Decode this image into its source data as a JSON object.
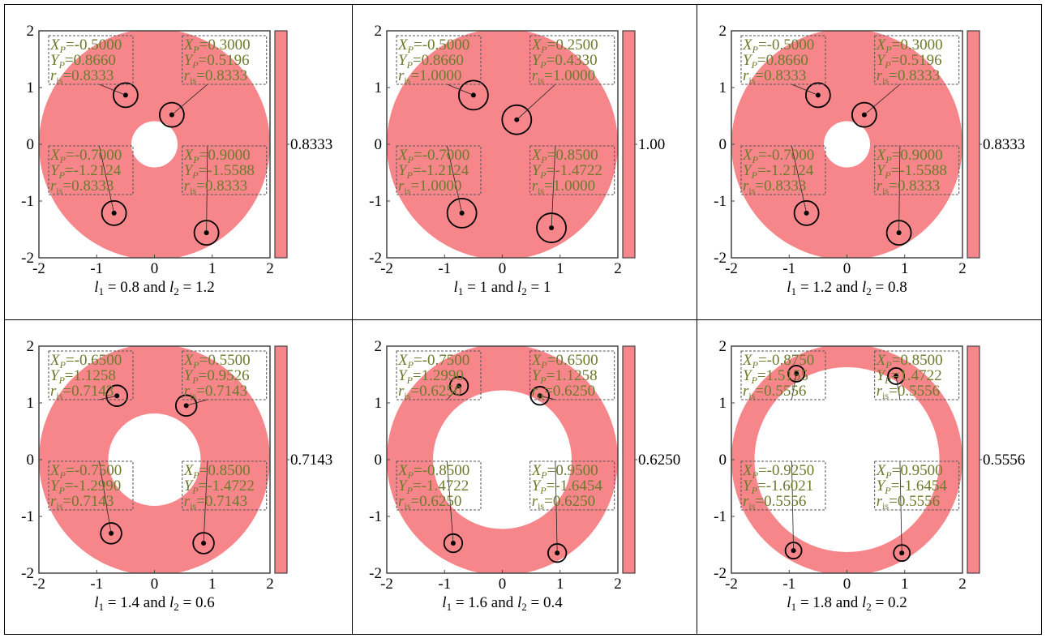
{
  "chart_data": [
    {
      "type": "scatter",
      "caption": {
        "l1": "0.8",
        "l2": "1.2"
      },
      "colorbar_label": "0.8333",
      "xlim": [
        -2,
        2
      ],
      "ylim": [
        -2,
        2
      ],
      "xticks": [
        "-2",
        "-1",
        "0",
        "1",
        "2"
      ],
      "yticks": [
        "-2",
        "-1",
        "0",
        "1",
        "2"
      ],
      "workspace": {
        "inner_radius": 0.4,
        "outer_radius": 2.0,
        "color": "#f6868a"
      },
      "points": [
        {
          "xp": "-0.5000",
          "yp": "0.8660",
          "ris": "0.8333",
          "x": -0.5,
          "y": 0.866
        },
        {
          "xp": "0.3000",
          "yp": "0.5196",
          "ris": "0.8333",
          "x": 0.3,
          "y": 0.5196
        },
        {
          "xp": "-0.7000",
          "yp": "-1.2124",
          "ris": "0.8333",
          "x": -0.7,
          "y": -1.2124
        },
        {
          "xp": "0.9000",
          "yp": "-1.5588",
          "ris": "0.8333",
          "x": 0.9,
          "y": -1.5588
        }
      ]
    },
    {
      "type": "scatter",
      "caption": {
        "l1": "1",
        "l2": "1"
      },
      "colorbar_label": "1.00",
      "xlim": [
        -2,
        2
      ],
      "ylim": [
        -2,
        2
      ],
      "xticks": [
        "-2",
        "-1",
        "0",
        "1",
        "2"
      ],
      "yticks": [
        "-2",
        "-1",
        "0",
        "1",
        "2"
      ],
      "workspace": {
        "inner_radius": 0.0,
        "outer_radius": 2.0,
        "color": "#f6868a"
      },
      "points": [
        {
          "xp": "-0.5000",
          "yp": "0.8660",
          "ris": "1.0000",
          "x": -0.5,
          "y": 0.866
        },
        {
          "xp": "0.2500",
          "yp": "0.4330",
          "ris": "1.0000",
          "x": 0.25,
          "y": 0.433
        },
        {
          "xp": "-0.7000",
          "yp": "-1.2124",
          "ris": "1.0000",
          "x": -0.7,
          "y": -1.2124
        },
        {
          "xp": "0.8500",
          "yp": "-1.4722",
          "ris": "1.0000",
          "x": 0.85,
          "y": -1.4722
        }
      ]
    },
    {
      "type": "scatter",
      "caption": {
        "l1": "1.2",
        "l2": "0.8"
      },
      "colorbar_label": "0.8333",
      "xlim": [
        -2,
        2
      ],
      "ylim": [
        -2,
        2
      ],
      "xticks": [
        "-2",
        "-1",
        "0",
        "1",
        "2"
      ],
      "yticks": [
        "-2",
        "-1",
        "0",
        "1",
        "2"
      ],
      "workspace": {
        "inner_radius": 0.4,
        "outer_radius": 2.0,
        "color": "#f6868a"
      },
      "points": [
        {
          "xp": "-0.5000",
          "yp": "0.8660",
          "ris": "0.8333",
          "x": -0.5,
          "y": 0.866
        },
        {
          "xp": "0.3000",
          "yp": "0.5196",
          "ris": "0.8333",
          "x": 0.3,
          "y": 0.5196
        },
        {
          "xp": "-0.7000",
          "yp": "-1.2124",
          "ris": "0.8333",
          "x": -0.7,
          "y": -1.2124
        },
        {
          "xp": "0.9000",
          "yp": "-1.5588",
          "ris": "0.8333",
          "x": 0.9,
          "y": -1.5588
        }
      ]
    },
    {
      "type": "scatter",
      "caption": {
        "l1": "1.4",
        "l2": "0.6"
      },
      "colorbar_label": "0.7143",
      "xlim": [
        -2,
        2
      ],
      "ylim": [
        -2,
        2
      ],
      "xticks": [
        "-2",
        "-1",
        "0",
        "1",
        "2"
      ],
      "yticks": [
        "-2",
        "-1",
        "0",
        "1",
        "2"
      ],
      "workspace": {
        "inner_radius": 0.8,
        "outer_radius": 2.0,
        "color": "#f6868a"
      },
      "points": [
        {
          "xp": "-0.6500",
          "yp": "1.1258",
          "ris": "0.7143",
          "x": -0.65,
          "y": 1.1258
        },
        {
          "xp": "0.5500",
          "yp": "0.9526",
          "ris": "0.7143",
          "x": 0.55,
          "y": 0.9526
        },
        {
          "xp": "-0.7500",
          "yp": "-1.2990",
          "ris": "0.7143",
          "x": -0.75,
          "y": -1.299
        },
        {
          "xp": "0.8500",
          "yp": "-1.4722",
          "ris": "0.7143",
          "x": 0.85,
          "y": -1.4722
        }
      ]
    },
    {
      "type": "scatter",
      "caption": {
        "l1": "1.6",
        "l2": "0.4"
      },
      "colorbar_label": "0.6250",
      "xlim": [
        -2,
        2
      ],
      "ylim": [
        -2,
        2
      ],
      "xticks": [
        "-2",
        "-1",
        "0",
        "1",
        "2"
      ],
      "yticks": [
        "-2",
        "-1",
        "0",
        "1",
        "2"
      ],
      "workspace": {
        "inner_radius": 1.2,
        "outer_radius": 2.0,
        "color": "#f6868a"
      },
      "points": [
        {
          "xp": "-0.7500",
          "yp": "1.2990",
          "ris": "0.6250",
          "x": -0.75,
          "y": 1.299
        },
        {
          "xp": "0.6500",
          "yp": "1.1258",
          "ris": "0.6250",
          "x": 0.65,
          "y": 1.1258
        },
        {
          "xp": "-0.8500",
          "yp": "-1.4722",
          "ris": "0.6250",
          "x": -0.85,
          "y": -1.4722
        },
        {
          "xp": "0.9500",
          "yp": "-1.6454",
          "ris": "0.6250",
          "x": 0.95,
          "y": -1.6454
        }
      ]
    },
    {
      "type": "scatter",
      "caption": {
        "l1": "1.8",
        "l2": "0.2"
      },
      "colorbar_label": "0.5556",
      "xlim": [
        -2,
        2
      ],
      "ylim": [
        -2,
        2
      ],
      "xticks": [
        "-2",
        "-1",
        "0",
        "1",
        "2"
      ],
      "yticks": [
        "-2",
        "-1",
        "0",
        "1",
        "2"
      ],
      "workspace": {
        "inner_radius": 1.6,
        "outer_radius": 2.0,
        "color": "#f6868a"
      },
      "points": [
        {
          "xp": "-0.8750",
          "yp": "1.5155",
          "ris": "0.5556",
          "x": -0.875,
          "y": 1.5155
        },
        {
          "xp": "0.8500",
          "yp": "1.4722",
          "ris": "0.5556",
          "x": 0.85,
          "y": 1.4722
        },
        {
          "xp": "-0.9250",
          "yp": "-1.6021",
          "ris": "0.5556",
          "x": -0.925,
          "y": -1.6021
        },
        {
          "xp": "0.9500",
          "yp": "-1.6454",
          "ris": "0.5556",
          "x": 0.95,
          "y": -1.6454
        }
      ]
    }
  ]
}
